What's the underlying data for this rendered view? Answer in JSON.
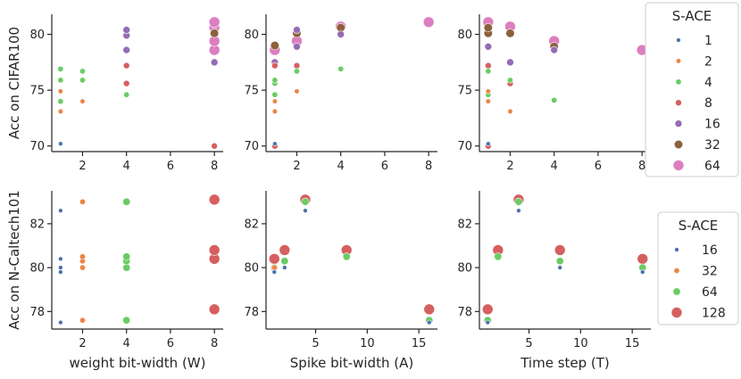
{
  "chart_data": [
    {
      "type": "scatter",
      "title": "",
      "xlabel": "",
      "ylabel": "Acc on CIFAR100",
      "xlim": [
        0.6,
        8.4
      ],
      "ylim": [
        69.5,
        81.8
      ],
      "xticks": [
        2,
        4,
        6,
        8
      ],
      "yticks": [
        70,
        75,
        80
      ],
      "hue_legend": "top",
      "points": [
        {
          "x": 1,
          "y": 70.2,
          "hue": "1"
        },
        {
          "x": 1,
          "y": 73.1,
          "hue": "2"
        },
        {
          "x": 1,
          "y": 74.9,
          "hue": "2"
        },
        {
          "x": 1,
          "y": 74.0,
          "hue": "4"
        },
        {
          "x": 1,
          "y": 75.9,
          "hue": "4"
        },
        {
          "x": 1,
          "y": 76.9,
          "hue": "4"
        },
        {
          "x": 2,
          "y": 74.0,
          "hue": "2"
        },
        {
          "x": 2,
          "y": 75.9,
          "hue": "4"
        },
        {
          "x": 2,
          "y": 76.7,
          "hue": "4"
        },
        {
          "x": 4,
          "y": 74.6,
          "hue": "4"
        },
        {
          "x": 4,
          "y": 75.6,
          "hue": "8"
        },
        {
          "x": 4,
          "y": 77.2,
          "hue": "8"
        },
        {
          "x": 4,
          "y": 78.6,
          "hue": "16"
        },
        {
          "x": 4,
          "y": 79.9,
          "hue": "16"
        },
        {
          "x": 4,
          "y": 80.4,
          "hue": "16"
        },
        {
          "x": 8,
          "y": 70.0,
          "hue": "8"
        },
        {
          "x": 8,
          "y": 77.5,
          "hue": "16"
        },
        {
          "x": 8,
          "y": 78.6,
          "hue": "64"
        },
        {
          "x": 8,
          "y": 79.4,
          "hue": "64"
        },
        {
          "x": 8,
          "y": 80.1,
          "hue": "32"
        },
        {
          "x": 8,
          "y": 80.6,
          "hue": "64"
        },
        {
          "x": 8,
          "y": 81.1,
          "hue": "64"
        }
      ]
    },
    {
      "type": "scatter",
      "xlabel": "",
      "ylabel": "",
      "xlim": [
        0.6,
        8.4
      ],
      "ylim": [
        69.5,
        81.8
      ],
      "xticks": [
        2,
        4,
        6,
        8
      ],
      "yticks": [
        70,
        75,
        80
      ],
      "hue_legend": "top",
      "points": [
        {
          "x": 1,
          "y": 70.0,
          "hue": "8"
        },
        {
          "x": 1,
          "y": 70.2,
          "hue": "1"
        },
        {
          "x": 1,
          "y": 73.1,
          "hue": "2"
        },
        {
          "x": 1,
          "y": 74.0,
          "hue": "2"
        },
        {
          "x": 1,
          "y": 74.6,
          "hue": "4"
        },
        {
          "x": 1,
          "y": 75.6,
          "hue": "4"
        },
        {
          "x": 1,
          "y": 75.9,
          "hue": "4"
        },
        {
          "x": 1,
          "y": 77.2,
          "hue": "8"
        },
        {
          "x": 1,
          "y": 77.5,
          "hue": "16"
        },
        {
          "x": 1,
          "y": 78.6,
          "hue": "64"
        },
        {
          "x": 1,
          "y": 79.0,
          "hue": "32"
        },
        {
          "x": 2,
          "y": 74.9,
          "hue": "2"
        },
        {
          "x": 2,
          "y": 76.7,
          "hue": "4"
        },
        {
          "x": 2,
          "y": 77.2,
          "hue": "8"
        },
        {
          "x": 2,
          "y": 78.9,
          "hue": "16"
        },
        {
          "x": 2,
          "y": 79.4,
          "hue": "64"
        },
        {
          "x": 2,
          "y": 80.1,
          "hue": "32"
        },
        {
          "x": 2,
          "y": 80.4,
          "hue": "16"
        },
        {
          "x": 4,
          "y": 76.9,
          "hue": "4"
        },
        {
          "x": 4,
          "y": 80.0,
          "hue": "16"
        },
        {
          "x": 4,
          "y": 80.6,
          "hue": "32"
        },
        {
          "x": 4,
          "y": 80.7,
          "hue": "64"
        },
        {
          "x": 8,
          "y": 81.1,
          "hue": "64"
        }
      ]
    },
    {
      "type": "scatter",
      "xlabel": "",
      "ylabel": "",
      "xlim": [
        0.6,
        8.4
      ],
      "ylim": [
        69.5,
        81.8
      ],
      "xticks": [
        2,
        4,
        6,
        8
      ],
      "yticks": [
        70,
        75,
        80
      ],
      "hue_legend": "top",
      "points": [
        {
          "x": 1,
          "y": 70.0,
          "hue": "8"
        },
        {
          "x": 1,
          "y": 70.2,
          "hue": "1"
        },
        {
          "x": 1,
          "y": 74.0,
          "hue": "2"
        },
        {
          "x": 1,
          "y": 74.6,
          "hue": "4"
        },
        {
          "x": 1,
          "y": 74.9,
          "hue": "2"
        },
        {
          "x": 1,
          "y": 76.7,
          "hue": "4"
        },
        {
          "x": 1,
          "y": 77.2,
          "hue": "8"
        },
        {
          "x": 1,
          "y": 78.9,
          "hue": "16"
        },
        {
          "x": 1,
          "y": 80.1,
          "hue": "32"
        },
        {
          "x": 1,
          "y": 80.6,
          "hue": "32"
        },
        {
          "x": 1,
          "y": 81.1,
          "hue": "64"
        },
        {
          "x": 2,
          "y": 73.1,
          "hue": "2"
        },
        {
          "x": 2,
          "y": 75.6,
          "hue": "8"
        },
        {
          "x": 2,
          "y": 75.9,
          "hue": "4"
        },
        {
          "x": 2,
          "y": 77.5,
          "hue": "16"
        },
        {
          "x": 2,
          "y": 80.1,
          "hue": "32"
        },
        {
          "x": 2,
          "y": 80.7,
          "hue": "64"
        },
        {
          "x": 4,
          "y": 74.1,
          "hue": "4"
        },
        {
          "x": 4,
          "y": 78.6,
          "hue": "16"
        },
        {
          "x": 4,
          "y": 78.9,
          "hue": "32"
        },
        {
          "x": 4,
          "y": 79.4,
          "hue": "64"
        },
        {
          "x": 8,
          "y": 78.6,
          "hue": "64"
        }
      ]
    },
    {
      "type": "scatter",
      "xlabel": "weight bit-width (W)",
      "ylabel": "Acc on N-Caltech101",
      "xlim": [
        0.6,
        8.4
      ],
      "ylim": [
        77.2,
        83.5
      ],
      "xticks": [
        2,
        4,
        6,
        8
      ],
      "yticks": [
        78,
        80,
        82
      ],
      "hue_legend": "bottom",
      "points": [
        {
          "x": 1,
          "y": 77.5,
          "hue": "16"
        },
        {
          "x": 1,
          "y": 79.8,
          "hue": "16"
        },
        {
          "x": 1,
          "y": 80.0,
          "hue": "16"
        },
        {
          "x": 1,
          "y": 80.4,
          "hue": "16"
        },
        {
          "x": 1,
          "y": 82.6,
          "hue": "16"
        },
        {
          "x": 2,
          "y": 77.6,
          "hue": "32"
        },
        {
          "x": 2,
          "y": 80.0,
          "hue": "32"
        },
        {
          "x": 2,
          "y": 80.3,
          "hue": "32"
        },
        {
          "x": 2,
          "y": 80.5,
          "hue": "32"
        },
        {
          "x": 2,
          "y": 83.0,
          "hue": "32"
        },
        {
          "x": 4,
          "y": 77.6,
          "hue": "64"
        },
        {
          "x": 4,
          "y": 80.0,
          "hue": "64"
        },
        {
          "x": 4,
          "y": 80.3,
          "hue": "64"
        },
        {
          "x": 4,
          "y": 80.5,
          "hue": "64"
        },
        {
          "x": 4,
          "y": 83.0,
          "hue": "64"
        },
        {
          "x": 8,
          "y": 78.1,
          "hue": "128"
        },
        {
          "x": 8,
          "y": 80.4,
          "hue": "128"
        },
        {
          "x": 8,
          "y": 80.8,
          "hue": "128"
        },
        {
          "x": 8,
          "y": 83.1,
          "hue": "128"
        }
      ]
    },
    {
      "type": "scatter",
      "xlabel": "Spike bit-width (A)",
      "ylabel": "",
      "xlim": [
        0.2,
        16.8
      ],
      "ylim": [
        77.2,
        83.5
      ],
      "xticks": [
        5,
        10,
        15
      ],
      "yticks": [
        78,
        80,
        82
      ],
      "hue_legend": "bottom",
      "points": [
        {
          "x": 1,
          "y": 79.8,
          "hue": "16"
        },
        {
          "x": 1,
          "y": 80.0,
          "hue": "32"
        },
        {
          "x": 1,
          "y": 80.0,
          "hue": "64"
        },
        {
          "x": 1,
          "y": 80.4,
          "hue": "128"
        },
        {
          "x": 2,
          "y": 80.0,
          "hue": "16"
        },
        {
          "x": 2,
          "y": 80.3,
          "hue": "64"
        },
        {
          "x": 2,
          "y": 80.8,
          "hue": "128"
        },
        {
          "x": 4,
          "y": 82.6,
          "hue": "16"
        },
        {
          "x": 4,
          "y": 83.0,
          "hue": "64"
        },
        {
          "x": 4,
          "y": 83.1,
          "hue": "128"
        },
        {
          "x": 8,
          "y": 80.5,
          "hue": "64"
        },
        {
          "x": 8,
          "y": 80.8,
          "hue": "128"
        },
        {
          "x": 16,
          "y": 77.5,
          "hue": "16"
        },
        {
          "x": 16,
          "y": 77.6,
          "hue": "64"
        },
        {
          "x": 16,
          "y": 78.1,
          "hue": "128"
        }
      ]
    },
    {
      "type": "scatter",
      "xlabel": "Time step (T)",
      "ylabel": "",
      "xlim": [
        0.2,
        16.8
      ],
      "ylim": [
        77.2,
        83.5
      ],
      "xticks": [
        5,
        10,
        15
      ],
      "yticks": [
        78,
        80,
        82
      ],
      "hue_legend": "bottom",
      "points": [
        {
          "x": 1,
          "y": 77.5,
          "hue": "16"
        },
        {
          "x": 1,
          "y": 77.6,
          "hue": "64"
        },
        {
          "x": 1,
          "y": 78.1,
          "hue": "128"
        },
        {
          "x": 2,
          "y": 80.5,
          "hue": "64"
        },
        {
          "x": 2,
          "y": 80.8,
          "hue": "128"
        },
        {
          "x": 4,
          "y": 82.6,
          "hue": "16"
        },
        {
          "x": 4,
          "y": 83.0,
          "hue": "64"
        },
        {
          "x": 4,
          "y": 83.1,
          "hue": "128"
        },
        {
          "x": 8,
          "y": 80.0,
          "hue": "16"
        },
        {
          "x": 8,
          "y": 80.3,
          "hue": "64"
        },
        {
          "x": 8,
          "y": 80.8,
          "hue": "128"
        },
        {
          "x": 16,
          "y": 79.8,
          "hue": "16"
        },
        {
          "x": 16,
          "y": 80.0,
          "hue": "64"
        },
        {
          "x": 16,
          "y": 80.4,
          "hue": "128"
        }
      ]
    }
  ],
  "legends": {
    "top": {
      "title": "S-ACE",
      "entries": [
        {
          "label": "1",
          "color": "#4c72b0",
          "size": 2.5
        },
        {
          "label": "2",
          "color": "#ed8445",
          "size": 2.8
        },
        {
          "label": "4",
          "color": "#6acc64",
          "size": 3.2
        },
        {
          "label": "8",
          "color": "#d65f5f",
          "size": 3.5
        },
        {
          "label": "16",
          "color": "#956cb4",
          "size": 4.0
        },
        {
          "label": "32",
          "color": "#8c613c",
          "size": 4.8
        },
        {
          "label": "64",
          "color": "#dc7ec0",
          "size": 6.0
        }
      ]
    },
    "bottom": {
      "title": "S-ACE",
      "entries": [
        {
          "label": "16",
          "color": "#4c72b0",
          "size": 2.5
        },
        {
          "label": "32",
          "color": "#ed8445",
          "size": 3.2
        },
        {
          "label": "64",
          "color": "#6acc64",
          "size": 4.2
        },
        {
          "label": "128",
          "color": "#d65f5f",
          "size": 6.0
        }
      ]
    }
  }
}
